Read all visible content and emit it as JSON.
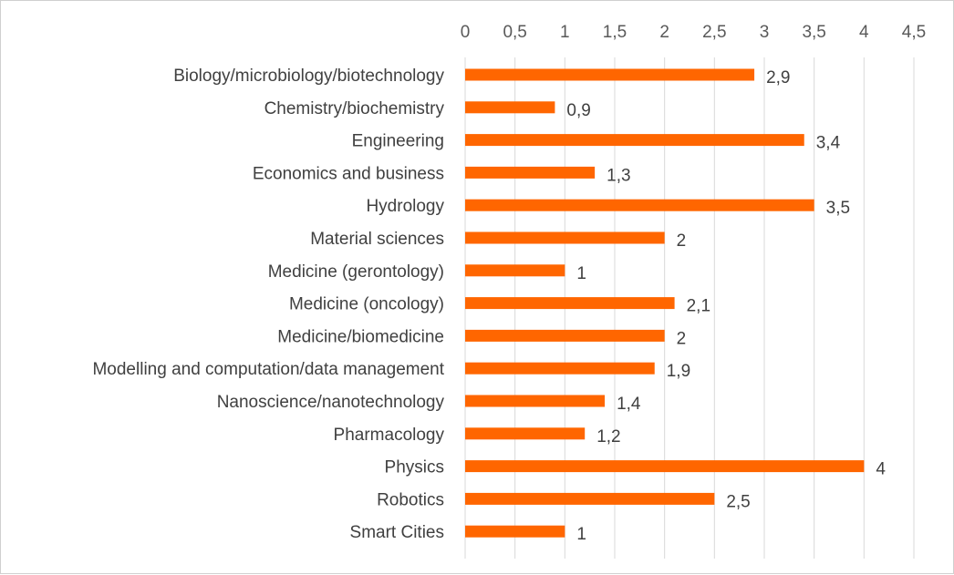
{
  "chart_data": {
    "type": "bar",
    "orientation": "horizontal",
    "categories": [
      "Biology/microbiology/biotechnology",
      "Chemistry/biochemistry",
      "Engineering",
      "Economics and business",
      "Hydrology",
      "Material sciences",
      "Medicine (gerontology)",
      "Medicine (oncology)",
      "Medicine/biomedicine",
      "Modelling and computation/data management",
      "Nanoscience/nanotechnology",
      "Pharmacology",
      "Physics",
      "Robotics",
      "Smart Cities"
    ],
    "values": [
      2.9,
      0.9,
      3.4,
      1.3,
      3.5,
      2,
      1,
      2.1,
      2,
      1.9,
      1.4,
      1.2,
      4,
      2.5,
      1
    ],
    "value_labels": [
      "2,9",
      "0,9",
      "3,4",
      "1,3",
      "3,5",
      "2",
      "1",
      "2,1",
      "2",
      "1,9",
      "1,4",
      "1,2",
      "4",
      "2,5",
      "1"
    ],
    "xlim": [
      0,
      4.5
    ],
    "x_ticks": [
      0,
      0.5,
      1,
      1.5,
      2,
      2.5,
      3,
      3.5,
      4,
      4.5
    ],
    "x_tick_labels": [
      "0",
      "0,5",
      "1",
      "1,5",
      "2",
      "2,5",
      "3",
      "3,5",
      "4",
      "4,5"
    ],
    "x_axis_position": "top",
    "grid": true,
    "legend": "none",
    "title": "",
    "xlabel": "",
    "ylabel": "",
    "bar_color": "#FF6600"
  }
}
